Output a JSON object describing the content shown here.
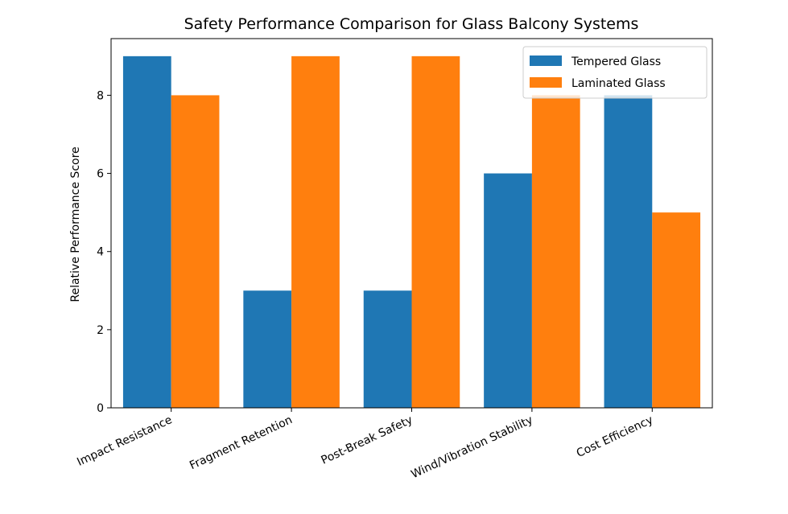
{
  "chart_data": {
    "type": "bar",
    "title": "Safety Performance Comparison for Glass Balcony Systems",
    "xlabel": "",
    "ylabel": "Relative Performance Score",
    "categories": [
      "Impact Resistance",
      "Fragment Retention",
      "Post-Break Safety",
      "Wind/Vibration Stability",
      "Cost Efficiency"
    ],
    "series": [
      {
        "name": "Tempered Glass",
        "color": "#1f77b4",
        "values": [
          9,
          3,
          3,
          6,
          8
        ]
      },
      {
        "name": "Laminated Glass",
        "color": "#ff7f0e",
        "values": [
          8,
          9,
          9,
          8,
          5
        ]
      }
    ],
    "ylim": [
      0,
      9.45
    ],
    "yticks": [
      "0",
      "2",
      "4",
      "6",
      "8"
    ],
    "grid": false,
    "legend_position": "top-right"
  }
}
